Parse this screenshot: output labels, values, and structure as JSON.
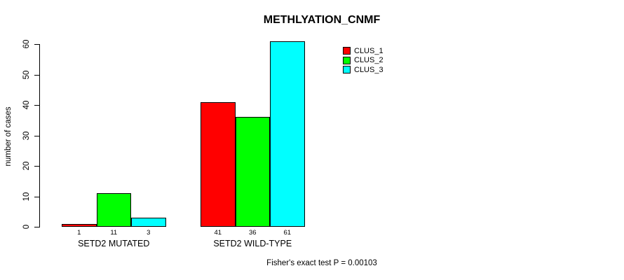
{
  "title": "METHLYATION_CNMF",
  "chart_data": {
    "type": "bar",
    "title": "METHLYATION_CNMF",
    "xlabel": "",
    "ylabel": "number of cases",
    "ylim": [
      0,
      60
    ],
    "yticks": [
      0,
      10,
      20,
      30,
      40,
      50,
      60
    ],
    "grid": false,
    "legend_position": "top-right-inside",
    "categories": [
      "SETD2 MUTATED",
      "SETD2 WILD-TYPE"
    ],
    "series": [
      {
        "name": "CLUS_1",
        "color": "#ff0000",
        "values": [
          1,
          41
        ]
      },
      {
        "name": "CLUS_2",
        "color": "#00ff00",
        "values": [
          11,
          36
        ]
      },
      {
        "name": "CLUS_3",
        "color": "#00ffff",
        "values": [
          3,
          61
        ]
      }
    ],
    "bar_value_labels": [
      [
        "1",
        "11",
        "3"
      ],
      [
        "41",
        "36",
        "61"
      ]
    ],
    "annotation": "Fisher's exact test P = 0.00103"
  },
  "colors": {
    "background": "#ffffff",
    "axis": "#000000",
    "text": "#000000"
  }
}
